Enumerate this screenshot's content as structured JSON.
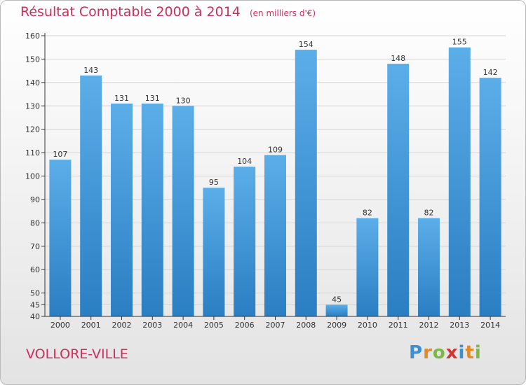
{
  "chart_data": {
    "type": "bar",
    "title": "Résultat Comptable 2000 à 2014",
    "subtitle": "(en milliers d'€)",
    "xlabel": "",
    "ylabel": "",
    "categories": [
      "2000",
      "2001",
      "2002",
      "2003",
      "2004",
      "2005",
      "2006",
      "2007",
      "2008",
      "2009",
      "2010",
      "2011",
      "2012",
      "2013",
      "2014"
    ],
    "values": [
      107,
      143,
      131,
      131,
      130,
      95,
      104,
      109,
      154,
      45,
      82,
      148,
      82,
      155,
      142
    ],
    "ylim": [
      40,
      160
    ],
    "yticks": [
      40,
      45,
      50,
      60,
      70,
      80,
      90,
      100,
      110,
      120,
      130,
      140,
      150,
      160
    ],
    "grid": true,
    "legend": "none",
    "bar_color_top": "#5baee8",
    "bar_color_bottom": "#2a7ec2",
    "axis_color": "#333333"
  },
  "footer": {
    "commune": "VOLLORE-VILLE",
    "logo_letters": [
      {
        "ch": "P",
        "color": "#3d8fd0"
      },
      {
        "ch": "r",
        "color": "#e08a2a"
      },
      {
        "ch": "o",
        "color": "#7cb843"
      },
      {
        "ch": "x",
        "color": "#d9332f"
      },
      {
        "ch": "i",
        "color": "#3d8fd0"
      },
      {
        "ch": "t",
        "color": "#e08a2a"
      },
      {
        "ch": "i",
        "color": "#7cb843"
      }
    ]
  }
}
